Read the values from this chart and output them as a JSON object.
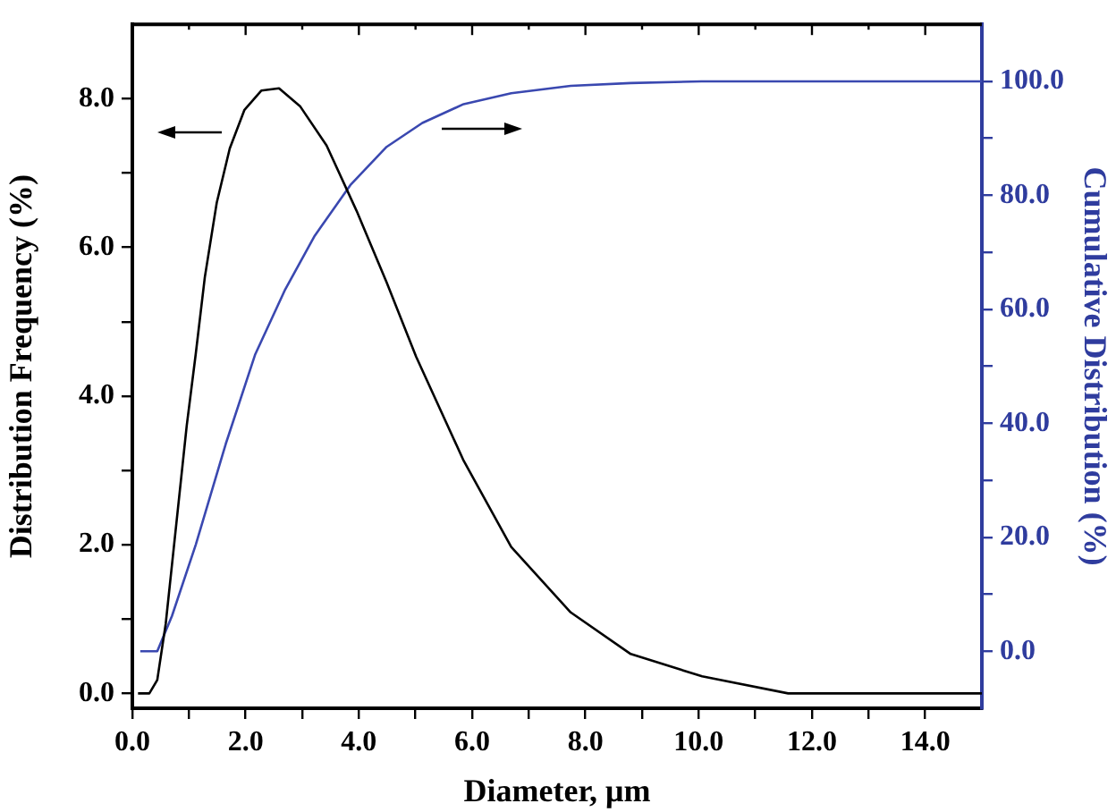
{
  "chart_data": {
    "type": "line",
    "xlabel": "Diameter, μm",
    "ylabel": "Distribution Frequency (%)",
    "y2label": "Cumulative Distribution (%)",
    "marker": "none",
    "line_style": "solid",
    "xlim": [
      0,
      15
    ],
    "ylim": [
      -0.2,
      9
    ],
    "y2lim": [
      -10,
      110
    ],
    "xticks": [
      {
        "value": 0,
        "label": "0.0"
      },
      {
        "value": 1,
        "label": null
      },
      {
        "value": 2,
        "label": "2.0"
      },
      {
        "value": 3,
        "label": null
      },
      {
        "value": 4,
        "label": "4.0"
      },
      {
        "value": 5,
        "label": null
      },
      {
        "value": 6,
        "label": "6.0"
      },
      {
        "value": 7,
        "label": null
      },
      {
        "value": 8,
        "label": "8.0"
      },
      {
        "value": 9,
        "label": null
      },
      {
        "value": 10,
        "label": "10.0"
      },
      {
        "value": 11,
        "label": null
      },
      {
        "value": 12,
        "label": "12.0"
      },
      {
        "value": 13,
        "label": null
      },
      {
        "value": 14,
        "label": "14.0"
      }
    ],
    "yticks": [
      {
        "value": 0,
        "label": "0.0"
      },
      {
        "value": 1,
        "label": null
      },
      {
        "value": 2,
        "label": "2.0"
      },
      {
        "value": 3,
        "label": null
      },
      {
        "value": 4,
        "label": "4.0"
      },
      {
        "value": 5,
        "label": null
      },
      {
        "value": 6,
        "label": "6.0"
      },
      {
        "value": 7,
        "label": null
      },
      {
        "value": 8,
        "label": "8.0"
      }
    ],
    "y2ticks": [
      {
        "value": 0,
        "label": "0.0"
      },
      {
        "value": 10,
        "label": null
      },
      {
        "value": 20,
        "label": "20.0"
      },
      {
        "value": 30,
        "label": null
      },
      {
        "value": 40,
        "label": "40.0"
      },
      {
        "value": 50,
        "label": null
      },
      {
        "value": 60,
        "label": "60.0"
      },
      {
        "value": 70,
        "label": null
      },
      {
        "value": 80,
        "label": "80.0"
      },
      {
        "value": 90,
        "label": null
      },
      {
        "value": 100,
        "label": "100.0"
      }
    ],
    "series": [
      {
        "color": "#000000",
        "x": [
          0.1,
          0.3,
          0.44,
          0.59,
          0.96,
          1.12,
          1.28,
          1.49,
          1.72,
          1.98,
          2.28,
          2.59,
          2.96,
          3.43,
          3.96,
          4.49,
          5.01,
          5.85,
          6.69,
          7.74,
          8.8,
          10.06,
          11.58,
          15
        ],
        "values": [
          0,
          0,
          0.18,
          0.94,
          3.6,
          4.57,
          5.6,
          6.6,
          7.33,
          7.85,
          8.11,
          8.14,
          7.9,
          7.37,
          6.49,
          5.53,
          4.53,
          3.13,
          1.97,
          1.09,
          0.53,
          0.23,
          0,
          0
        ]
      },
      {
        "color": "#3a48b0",
        "axis": "y2",
        "x": [
          0.14,
          0.44,
          0.7,
          1.12,
          1.65,
          2.17,
          2.7,
          3.22,
          3.85,
          4.49,
          5.12,
          5.85,
          6.69,
          7.74,
          8.8,
          10.05,
          15
        ],
        "values": [
          0,
          0,
          6.2,
          18.7,
          36.4,
          52.1,
          63.5,
          72.9,
          81.8,
          88.5,
          92.7,
          96,
          97.9,
          99.2,
          99.7,
          100,
          100
        ]
      }
    ]
  }
}
